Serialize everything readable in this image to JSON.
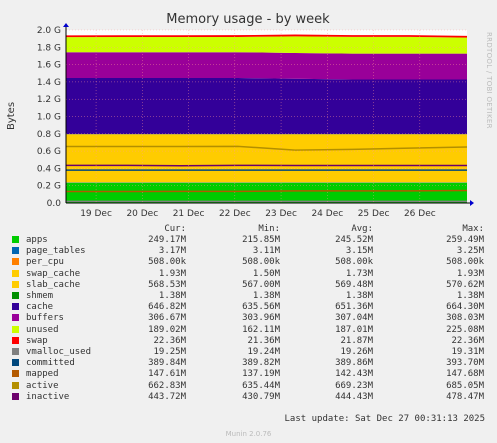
{
  "chart_data": {
    "type": "area",
    "title": "Memory usage - by week",
    "ylabel": "Bytes",
    "xlabel": "",
    "side_text": "RRDTOOL / TOBI OETIKER",
    "y_ticks": [
      "0.0",
      "0.2 G",
      "0.4 G",
      "0.6 G",
      "0.8 G",
      "1.0 G",
      "1.2 G",
      "1.4 G",
      "1.6 G",
      "1.8 G",
      "2.0 G"
    ],
    "ylim": [
      0,
      2.0
    ],
    "x_ticks": [
      "19 Dec",
      "20 Dec",
      "21 Dec",
      "22 Dec",
      "23 Dec",
      "24 Dec",
      "25 Dec",
      "26 Dec"
    ],
    "x_range_days": [
      18.35,
      27.02
    ],
    "grid": true,
    "stack_order": [
      "apps",
      "page_tables",
      "per_cpu",
      "swap_cache",
      "slab_cache",
      "shmem",
      "cache",
      "buffers",
      "unused",
      "swap"
    ],
    "areas": [
      {
        "name": "apps",
        "color": "#00cc00",
        "values_gb": [
          0.2338,
          0.2338,
          0.2338,
          0.2338,
          0.2338,
          0.2338,
          0.2338,
          0.2338
        ]
      },
      {
        "name": "page_tables",
        "color": "#0066b3",
        "values_gb": [
          0.0031,
          0.0031,
          0.0031,
          0.0031,
          0.0031,
          0.0031,
          0.0031,
          0.0031
        ]
      },
      {
        "name": "per_cpu",
        "color": "#ff8000",
        "values_gb": [
          0.0005,
          0.0005,
          0.0005,
          0.0005,
          0.0005,
          0.0005,
          0.0005,
          0.0005
        ]
      },
      {
        "name": "swap_cache",
        "color": "#ffcc00",
        "values_gb": [
          0.0017,
          0.0017,
          0.0017,
          0.0017,
          0.0017,
          0.0017,
          0.0017,
          0.0017
        ]
      },
      {
        "name": "slab_cache",
        "color": "#ffcc00",
        "values_gb": [
          0.556,
          0.556,
          0.556,
          0.556,
          0.556,
          0.556,
          0.556,
          0.556
        ]
      },
      {
        "name": "shmem",
        "color": "#008f00",
        "values_gb": [
          0.0013,
          0.0013,
          0.0013,
          0.0013,
          0.0013,
          0.0013,
          0.0013,
          0.0013
        ]
      },
      {
        "name": "cache",
        "color": "#330099",
        "values_gb": [
          0.648,
          0.648,
          0.648,
          0.648,
          0.64,
          0.631,
          0.631,
          0.631
        ]
      },
      {
        "name": "buffers",
        "color": "#990099",
        "values_gb": [
          0.298,
          0.298,
          0.299,
          0.299,
          0.298,
          0.299,
          0.299,
          0.3
        ]
      },
      {
        "name": "unused",
        "color": "#ccff00",
        "values_gb": [
          0.175,
          0.176,
          0.175,
          0.176,
          0.192,
          0.194,
          0.194,
          0.184
        ]
      },
      {
        "name": "swap",
        "color": "#ff0000",
        "values_gb": [
          0.021,
          0.021,
          0.021,
          0.021,
          0.021,
          0.021,
          0.021,
          0.021
        ]
      }
    ],
    "lines": [
      {
        "name": "vmalloc_used",
        "color": "#808080",
        "values_gb": [
          0.0188,
          0.0188,
          0.0188,
          0.0188,
          0.0188,
          0.0188,
          0.0188,
          0.0188
        ]
      },
      {
        "name": "committed",
        "color": "#00487d",
        "values_gb": [
          0.3805,
          0.3805,
          0.3805,
          0.3805,
          0.3805,
          0.3805,
          0.3805,
          0.3805
        ]
      },
      {
        "name": "mapped",
        "color": "#b35a00",
        "values_gb": [
          0.133,
          0.133,
          0.134,
          0.134,
          0.14,
          0.14,
          0.14,
          0.144
        ]
      },
      {
        "name": "active",
        "color": "#b38f00",
        "values_gb": [
          0.653,
          0.653,
          0.653,
          0.655,
          0.611,
          0.62,
          0.635,
          0.647
        ]
      },
      {
        "name": "inactive",
        "color": "#6b006b",
        "values_gb": [
          0.435,
          0.435,
          0.43,
          0.435,
          0.433,
          0.434,
          0.434,
          0.434
        ]
      }
    ]
  },
  "legend": {
    "headers": {
      "cur": "Cur:",
      "min": "Min:",
      "avg": "Avg:",
      "max": "Max:"
    },
    "rows": [
      {
        "name": "apps",
        "color": "#00cc00",
        "cur": "249.17M",
        "min": "215.85M",
        "avg": "245.52M",
        "max": "259.49M"
      },
      {
        "name": "page_tables",
        "color": "#0066b3",
        "cur": "3.17M",
        "min": "3.11M",
        "avg": "3.15M",
        "max": "3.25M"
      },
      {
        "name": "per_cpu",
        "color": "#ff8000",
        "cur": "508.00k",
        "min": "508.00k",
        "avg": "508.00k",
        "max": "508.00k"
      },
      {
        "name": "swap_cache",
        "color": "#ffcc00",
        "cur": "1.93M",
        "min": "1.50M",
        "avg": "1.73M",
        "max": "1.93M"
      },
      {
        "name": "slab_cache",
        "color": "#ffcc00",
        "cur": "568.53M",
        "min": "567.00M",
        "avg": "569.48M",
        "max": "570.62M"
      },
      {
        "name": "shmem",
        "color": "#008f00",
        "cur": "1.38M",
        "min": "1.38M",
        "avg": "1.38M",
        "max": "1.38M"
      },
      {
        "name": "cache",
        "color": "#330099",
        "cur": "646.82M",
        "min": "635.56M",
        "avg": "651.36M",
        "max": "664.30M"
      },
      {
        "name": "buffers",
        "color": "#990099",
        "cur": "306.67M",
        "min": "303.96M",
        "avg": "307.04M",
        "max": "308.03M"
      },
      {
        "name": "unused",
        "color": "#ccff00",
        "cur": "189.02M",
        "min": "162.11M",
        "avg": "187.01M",
        "max": "225.08M"
      },
      {
        "name": "swap",
        "color": "#ff0000",
        "cur": "22.36M",
        "min": "21.36M",
        "avg": "21.87M",
        "max": "22.36M"
      },
      {
        "name": "vmalloc_used",
        "color": "#808080",
        "cur": "19.25M",
        "min": "19.24M",
        "avg": "19.26M",
        "max": "19.31M"
      },
      {
        "name": "committed",
        "color": "#00487d",
        "cur": "389.84M",
        "min": "389.82M",
        "avg": "389.86M",
        "max": "393.70M"
      },
      {
        "name": "mapped",
        "color": "#b35a00",
        "cur": "147.61M",
        "min": "137.19M",
        "avg": "142.43M",
        "max": "147.68M"
      },
      {
        "name": "active",
        "color": "#b38f00",
        "cur": "662.83M",
        "min": "635.44M",
        "avg": "669.23M",
        "max": "685.05M"
      },
      {
        "name": "inactive",
        "color": "#6b006b",
        "cur": "443.72M",
        "min": "430.79M",
        "avg": "444.43M",
        "max": "478.47M"
      }
    ]
  },
  "footer": {
    "last_update": "Last update: Sat Dec 27 00:31:13 2025",
    "munin_version": "Munin 2.0.76"
  }
}
